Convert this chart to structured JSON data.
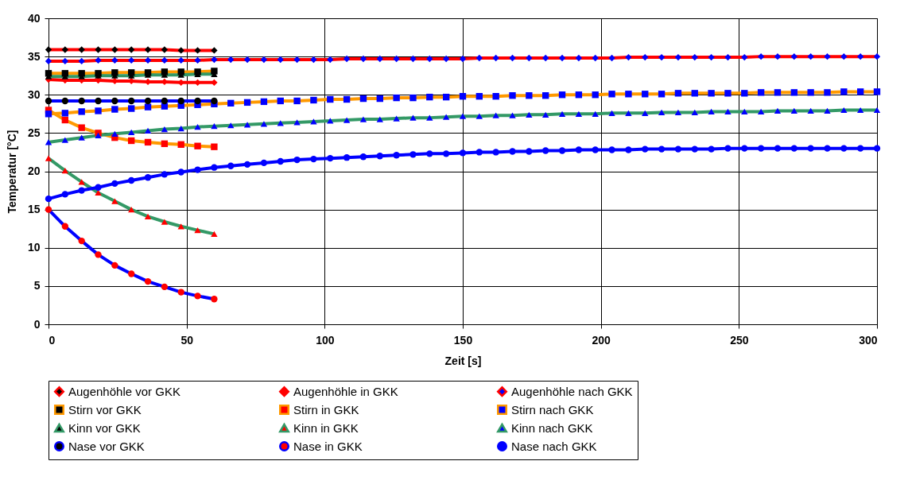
{
  "chart_data": {
    "type": "line",
    "xlabel": "Zeit [s]",
    "ylabel": "Temperatur [°C]",
    "xlim": [
      0,
      300
    ],
    "xticks": [
      0,
      50,
      100,
      150,
      200,
      250,
      300
    ],
    "ylim": [
      0,
      40
    ],
    "yticks": [
      0,
      5,
      10,
      15,
      20,
      25,
      30,
      35,
      40
    ],
    "grid": true,
    "legend": "bottom",
    "line_style": "solid",
    "series": [
      {
        "name": "Augenhöhle vor GKK",
        "color": "#ff0000",
        "marker": "diamond",
        "x": [
          0,
          6,
          12,
          18,
          24,
          30,
          36,
          42,
          48,
          54,
          60
        ],
        "values": [
          35.9,
          35.9,
          35.9,
          35.9,
          35.9,
          35.9,
          35.9,
          35.9,
          35.8,
          35.8,
          35.8
        ],
        "colors": [
          "#000000",
          "#000000",
          "#000000",
          "#000000",
          "#000000",
          "#000000",
          "#000000",
          "#000000",
          "#000000",
          "#000000",
          "#000000"
        ]
      },
      {
        "name": "Augenhöhle in GKK",
        "color": "#ff0000",
        "marker": "diamond",
        "x": [
          0,
          6,
          12,
          18,
          24,
          30,
          36,
          42,
          48,
          54,
          60
        ],
        "values": [
          32.0,
          31.9,
          31.9,
          31.9,
          31.8,
          31.8,
          31.7,
          31.7,
          31.6,
          31.6,
          31.6
        ],
        "colors": [
          "#ff0000",
          "#ff0000",
          "#ff0000",
          "#ff0000",
          "#ff0000",
          "#ff0000",
          "#ff0000",
          "#ff0000",
          "#ff0000",
          "#ff0000",
          "#ff0000"
        ]
      },
      {
        "name": "Augenhöhle nach GKK",
        "color": "#ff0000",
        "marker": "diamond",
        "x": [
          0,
          6,
          12,
          18,
          24,
          30,
          36,
          42,
          48,
          54,
          60,
          66,
          72,
          78,
          84,
          90,
          96,
          102,
          108,
          114,
          120,
          126,
          132,
          138,
          144,
          150,
          156,
          162,
          168,
          174,
          180,
          186,
          192,
          198,
          204,
          210,
          216,
          222,
          228,
          234,
          240,
          246,
          252,
          258,
          264,
          270,
          276,
          282,
          288,
          294,
          300
        ],
        "values": [
          34.4,
          34.4,
          34.4,
          34.5,
          34.5,
          34.5,
          34.5,
          34.5,
          34.5,
          34.5,
          34.6,
          34.6,
          34.6,
          34.6,
          34.6,
          34.6,
          34.6,
          34.6,
          34.7,
          34.7,
          34.7,
          34.7,
          34.7,
          34.7,
          34.7,
          34.7,
          34.8,
          34.8,
          34.8,
          34.8,
          34.8,
          34.8,
          34.8,
          34.8,
          34.8,
          34.9,
          34.9,
          34.9,
          34.9,
          34.9,
          34.9,
          34.9,
          34.9,
          35.0,
          35.0,
          35.0,
          35.0,
          35.0,
          35.0,
          35.0,
          35.0
        ],
        "colors": [
          "#0000ff",
          "#0000ff",
          "#0000ff",
          "#0000ff",
          "#0000ff",
          "#0000ff",
          "#0000ff",
          "#0000ff",
          "#0000ff",
          "#0000ff",
          "#0000ff",
          "#0000ff",
          "#0000ff",
          "#0000ff",
          "#0000ff",
          "#0000ff",
          "#0000ff",
          "#0000ff",
          "#0000ff",
          "#0000ff",
          "#0000ff",
          "#0000ff",
          "#0000ff",
          "#0000ff",
          "#0000ff",
          "#0000ff",
          "#0000ff",
          "#0000ff",
          "#0000ff",
          "#0000ff",
          "#0000ff",
          "#0000ff",
          "#0000ff",
          "#0000ff",
          "#0000ff",
          "#0000ff",
          "#0000ff",
          "#0000ff",
          "#0000ff",
          "#0000ff",
          "#0000ff",
          "#0000ff",
          "#0000ff",
          "#0000ff",
          "#0000ff",
          "#0000ff",
          "#0000ff",
          "#0000ff",
          "#0000ff",
          "#0000ff",
          "#0000ff"
        ]
      },
      {
        "name": "Stirn vor GKK",
        "color": "#ff9900",
        "marker": "square",
        "x": [
          0,
          6,
          12,
          18,
          24,
          30,
          36,
          42,
          48,
          54,
          60
        ],
        "values": [
          32.8,
          32.8,
          32.8,
          32.8,
          32.9,
          32.9,
          32.9,
          33.0,
          33.0,
          33.0,
          33.1
        ],
        "colors": [
          "#000000",
          "#000000",
          "#000000",
          "#000000",
          "#000000",
          "#000000",
          "#000000",
          "#000000",
          "#000000",
          "#000000",
          "#000000"
        ]
      },
      {
        "name": "Stirn in GKK",
        "color": "#ff9900",
        "marker": "square",
        "x": [
          0,
          6,
          12,
          18,
          24,
          30,
          36,
          42,
          48,
          54,
          60
        ],
        "values": [
          28.0,
          26.7,
          25.7,
          25.0,
          24.4,
          24.0,
          23.8,
          23.6,
          23.5,
          23.3,
          23.2
        ],
        "colors": [
          "#ff0000",
          "#ff0000",
          "#ff0000",
          "#ff0000",
          "#ff0000",
          "#ff0000",
          "#ff0000",
          "#ff0000",
          "#ff0000",
          "#ff0000",
          "#ff0000"
        ]
      },
      {
        "name": "Stirn nach GKK",
        "color": "#ff9900",
        "marker": "square",
        "x": [
          0,
          6,
          12,
          18,
          24,
          30,
          36,
          42,
          48,
          54,
          60,
          66,
          72,
          78,
          84,
          90,
          96,
          102,
          108,
          114,
          120,
          126,
          132,
          138,
          144,
          150,
          156,
          162,
          168,
          174,
          180,
          186,
          192,
          198,
          204,
          210,
          216,
          222,
          228,
          234,
          240,
          246,
          252,
          258,
          264,
          270,
          276,
          282,
          288,
          294,
          300
        ],
        "values": [
          27.5,
          27.6,
          27.8,
          27.9,
          28.1,
          28.2,
          28.4,
          28.5,
          28.6,
          28.7,
          28.8,
          28.9,
          29.0,
          29.1,
          29.2,
          29.2,
          29.3,
          29.4,
          29.4,
          29.5,
          29.5,
          29.6,
          29.6,
          29.7,
          29.7,
          29.8,
          29.8,
          29.8,
          29.9,
          29.9,
          29.9,
          30.0,
          30.0,
          30.0,
          30.1,
          30.1,
          30.1,
          30.1,
          30.2,
          30.2,
          30.2,
          30.2,
          30.2,
          30.3,
          30.3,
          30.3,
          30.3,
          30.3,
          30.4,
          30.4,
          30.4
        ],
        "colors": [
          "#0000ff",
          "#0000ff",
          "#0000ff",
          "#0000ff",
          "#0000ff",
          "#0000ff",
          "#0000ff",
          "#0000ff",
          "#0000ff",
          "#0000ff",
          "#0000ff",
          "#0000ff",
          "#0000ff",
          "#0000ff",
          "#0000ff",
          "#0000ff",
          "#0000ff",
          "#0000ff",
          "#0000ff",
          "#0000ff",
          "#0000ff",
          "#0000ff",
          "#0000ff",
          "#0000ff",
          "#0000ff",
          "#0000ff",
          "#0000ff",
          "#0000ff",
          "#0000ff",
          "#0000ff",
          "#0000ff",
          "#0000ff",
          "#0000ff",
          "#0000ff",
          "#0000ff",
          "#0000ff",
          "#0000ff",
          "#0000ff",
          "#0000ff",
          "#0000ff",
          "#0000ff",
          "#0000ff",
          "#0000ff",
          "#0000ff",
          "#0000ff",
          "#0000ff",
          "#0000ff",
          "#0000ff",
          "#0000ff",
          "#0000ff",
          "#0000ff"
        ]
      },
      {
        "name": "Kinn vor GKK",
        "color": "#339966",
        "marker": "triangle",
        "x": [
          0,
          6,
          12,
          18,
          24,
          30,
          36,
          42,
          48,
          54,
          60
        ],
        "values": [
          32.4,
          32.4,
          32.4,
          32.5,
          32.5,
          32.5,
          32.6,
          32.6,
          32.6,
          32.7,
          32.7
        ],
        "colors": [
          "#000000",
          "#000000",
          "#000000",
          "#000000",
          "#000000",
          "#000000",
          "#000000",
          "#000000",
          "#000000",
          "#000000",
          "#000000"
        ]
      },
      {
        "name": "Kinn in GKK",
        "color": "#339966",
        "marker": "triangle",
        "x": [
          0,
          6,
          12,
          18,
          24,
          30,
          36,
          42,
          48,
          54,
          60
        ],
        "values": [
          21.7,
          20.1,
          18.6,
          17.2,
          16.1,
          15.0,
          14.1,
          13.4,
          12.8,
          12.3,
          11.8
        ],
        "colors": [
          "#ff0000",
          "#ff0000",
          "#ff0000",
          "#ff0000",
          "#ff0000",
          "#ff0000",
          "#ff0000",
          "#ff0000",
          "#ff0000",
          "#ff0000",
          "#ff0000"
        ]
      },
      {
        "name": "Kinn nach GKK",
        "color": "#339966",
        "marker": "triangle",
        "x": [
          0,
          6,
          12,
          18,
          24,
          30,
          36,
          42,
          48,
          54,
          60,
          66,
          72,
          78,
          84,
          90,
          96,
          102,
          108,
          114,
          120,
          126,
          132,
          138,
          144,
          150,
          156,
          162,
          168,
          174,
          180,
          186,
          192,
          198,
          204,
          210,
          216,
          222,
          228,
          234,
          240,
          246,
          252,
          258,
          264,
          270,
          276,
          282,
          288,
          294,
          300
        ],
        "values": [
          23.8,
          24.1,
          24.4,
          24.7,
          24.9,
          25.1,
          25.3,
          25.5,
          25.6,
          25.8,
          25.9,
          26.0,
          26.1,
          26.2,
          26.3,
          26.4,
          26.5,
          26.6,
          26.7,
          26.8,
          26.8,
          26.9,
          27.0,
          27.0,
          27.1,
          27.2,
          27.2,
          27.3,
          27.3,
          27.4,
          27.4,
          27.5,
          27.5,
          27.5,
          27.6,
          27.6,
          27.6,
          27.7,
          27.7,
          27.7,
          27.8,
          27.8,
          27.8,
          27.8,
          27.9,
          27.9,
          27.9,
          27.9,
          28.0,
          28.0,
          28.0
        ],
        "colors": [
          "#0000ff",
          "#0000ff",
          "#0000ff",
          "#0000ff",
          "#0000ff",
          "#0000ff",
          "#0000ff",
          "#0000ff",
          "#0000ff",
          "#0000ff",
          "#0000ff",
          "#0000ff",
          "#0000ff",
          "#0000ff",
          "#0000ff",
          "#0000ff",
          "#0000ff",
          "#0000ff",
          "#0000ff",
          "#0000ff",
          "#0000ff",
          "#0000ff",
          "#0000ff",
          "#0000ff",
          "#0000ff",
          "#0000ff",
          "#0000ff",
          "#0000ff",
          "#0000ff",
          "#0000ff",
          "#0000ff",
          "#0000ff",
          "#0000ff",
          "#0000ff",
          "#0000ff",
          "#0000ff",
          "#0000ff",
          "#0000ff",
          "#0000ff",
          "#0000ff",
          "#0000ff",
          "#0000ff",
          "#0000ff",
          "#0000ff",
          "#0000ff",
          "#0000ff",
          "#0000ff",
          "#0000ff",
          "#0000ff",
          "#0000ff",
          "#0000ff"
        ]
      },
      {
        "name": "Nase vor GKK",
        "color": "#0000ff",
        "marker": "circle",
        "x": [
          0,
          6,
          12,
          18,
          24,
          30,
          36,
          42,
          48,
          54,
          60
        ],
        "values": [
          29.2,
          29.2,
          29.2,
          29.2,
          29.2,
          29.2,
          29.2,
          29.2,
          29.2,
          29.2,
          29.2
        ],
        "colors": [
          "#000000",
          "#000000",
          "#000000",
          "#000000",
          "#000000",
          "#000000",
          "#000000",
          "#000000",
          "#000000",
          "#000000",
          "#000000"
        ]
      },
      {
        "name": "Nase in GKK",
        "color": "#0000ff",
        "marker": "circle",
        "x": [
          0,
          6,
          12,
          18,
          24,
          30,
          36,
          42,
          48,
          54,
          60
        ],
        "values": [
          15.0,
          12.8,
          10.9,
          9.1,
          7.7,
          6.6,
          5.6,
          4.9,
          4.2,
          3.7,
          3.3
        ],
        "colors": [
          "#ff0000",
          "#ff0000",
          "#ff0000",
          "#ff0000",
          "#ff0000",
          "#ff0000",
          "#ff0000",
          "#ff0000",
          "#ff0000",
          "#ff0000",
          "#ff0000"
        ]
      },
      {
        "name": "Nase nach GKK",
        "color": "#0000ff",
        "marker": "circle",
        "x": [
          0,
          6,
          12,
          18,
          24,
          30,
          36,
          42,
          48,
          54,
          60,
          66,
          72,
          78,
          84,
          90,
          96,
          102,
          108,
          114,
          120,
          126,
          132,
          138,
          144,
          150,
          156,
          162,
          168,
          174,
          180,
          186,
          192,
          198,
          204,
          210,
          216,
          222,
          228,
          234,
          240,
          246,
          252,
          258,
          264,
          270,
          276,
          282,
          288,
          294,
          300
        ],
        "values": [
          16.4,
          17.0,
          17.5,
          17.9,
          18.4,
          18.8,
          19.2,
          19.6,
          19.9,
          20.2,
          20.5,
          20.7,
          20.9,
          21.1,
          21.3,
          21.5,
          21.6,
          21.7,
          21.8,
          21.9,
          22.0,
          22.1,
          22.2,
          22.3,
          22.3,
          22.4,
          22.5,
          22.5,
          22.6,
          22.6,
          22.7,
          22.7,
          22.8,
          22.8,
          22.8,
          22.8,
          22.9,
          22.9,
          22.9,
          22.9,
          22.9,
          23.0,
          23.0,
          23.0,
          23.0,
          23.0,
          23.0,
          23.0,
          23.0,
          23.0,
          23.0
        ],
        "colors": [
          "#0000ff",
          "#0000ff",
          "#0000ff",
          "#0000ff",
          "#0000ff",
          "#0000ff",
          "#0000ff",
          "#0000ff",
          "#0000ff",
          "#0000ff",
          "#0000ff",
          "#0000ff",
          "#0000ff",
          "#0000ff",
          "#0000ff",
          "#0000ff",
          "#0000ff",
          "#0000ff",
          "#0000ff",
          "#0000ff",
          "#0000ff",
          "#0000ff",
          "#0000ff",
          "#0000ff",
          "#0000ff",
          "#0000ff",
          "#0000ff",
          "#0000ff",
          "#0000ff",
          "#0000ff",
          "#0000ff",
          "#0000ff",
          "#0000ff",
          "#0000ff",
          "#0000ff",
          "#0000ff",
          "#0000ff",
          "#0000ff",
          "#0000ff",
          "#0000ff",
          "#0000ff",
          "#0000ff",
          "#0000ff",
          "#0000ff",
          "#0000ff",
          "#0000ff",
          "#0000ff",
          "#0000ff",
          "#0000ff",
          "#0000ff",
          "#0000ff"
        ]
      }
    ]
  }
}
